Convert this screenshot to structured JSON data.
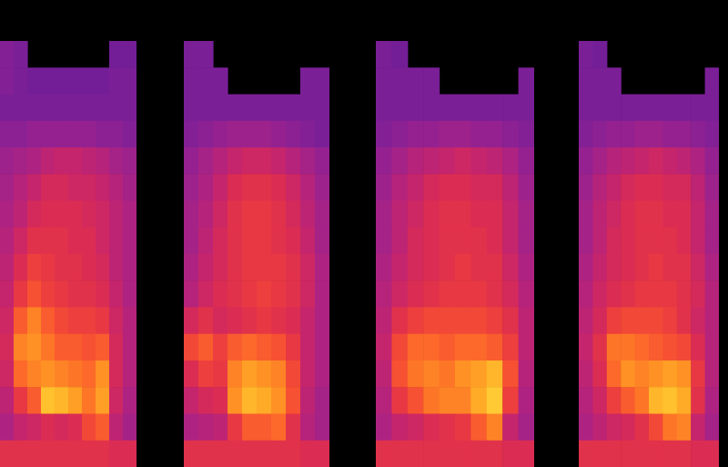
{
  "chart_data": [
    {
      "type": "heatmap",
      "tick_labels": false,
      "zlim": [
        0,
        100
      ],
      "z": [
        [
          32,
          30,
          null,
          null,
          null,
          null,
          null,
          null,
          28,
          28
        ],
        [
          32,
          30,
          28,
          28,
          28,
          28,
          28,
          28,
          30,
          30
        ],
        [
          30,
          30,
          30,
          30,
          30,
          30,
          30,
          30,
          30,
          30
        ],
        [
          34,
          34,
          36,
          36,
          36,
          36,
          36,
          34,
          34,
          32
        ],
        [
          38,
          40,
          42,
          46,
          48,
          48,
          46,
          44,
          40,
          38
        ],
        [
          40,
          44,
          48,
          52,
          52,
          50,
          50,
          48,
          44,
          40
        ],
        [
          42,
          46,
          52,
          54,
          54,
          54,
          52,
          50,
          46,
          42
        ],
        [
          44,
          50,
          56,
          56,
          56,
          54,
          54,
          50,
          46,
          42
        ],
        [
          46,
          54,
          60,
          58,
          56,
          56,
          54,
          52,
          46,
          42
        ],
        [
          48,
          58,
          64,
          60,
          58,
          56,
          56,
          54,
          48,
          42
        ],
        [
          50,
          66,
          72,
          66,
          62,
          60,
          60,
          58,
          50,
          44
        ],
        [
          52,
          72,
          74,
          70,
          66,
          66,
          64,
          66,
          52,
          44
        ],
        [
          50,
          68,
          72,
          74,
          72,
          70,
          68,
          74,
          52,
          44
        ],
        [
          46,
          58,
          66,
          82,
          80,
          76,
          70,
          76,
          50,
          42
        ],
        [
          42,
          48,
          50,
          54,
          52,
          54,
          62,
          66,
          46,
          40
        ],
        [
          56,
          56,
          56,
          56,
          56,
          56,
          56,
          56,
          54,
          54
        ]
      ]
    },
    {
      "type": "heatmap",
      "tick_labels": false,
      "zlim": [
        0,
        100
      ],
      "z": [
        [
          30,
          30,
          null,
          null,
          null,
          null,
          null,
          null,
          null,
          null
        ],
        [
          30,
          30,
          30,
          null,
          null,
          null,
          null,
          null,
          30,
          30
        ],
        [
          30,
          30,
          30,
          30,
          30,
          30,
          30,
          30,
          30,
          30
        ],
        [
          32,
          34,
          36,
          38,
          38,
          38,
          36,
          34,
          32,
          30
        ],
        [
          36,
          40,
          44,
          48,
          50,
          50,
          48,
          44,
          40,
          36
        ],
        [
          38,
          42,
          48,
          54,
          56,
          56,
          54,
          50,
          44,
          38
        ],
        [
          40,
          44,
          50,
          56,
          58,
          58,
          56,
          52,
          46,
          40
        ],
        [
          40,
          46,
          52,
          56,
          58,
          58,
          56,
          54,
          48,
          40
        ],
        [
          42,
          48,
          52,
          56,
          58,
          58,
          58,
          56,
          50,
          42
        ],
        [
          44,
          50,
          54,
          56,
          58,
          60,
          58,
          56,
          50,
          42
        ],
        [
          52,
          56,
          52,
          54,
          56,
          58,
          56,
          54,
          48,
          42
        ],
        [
          62,
          66,
          60,
          66,
          68,
          66,
          64,
          58,
          48,
          42
        ],
        [
          54,
          60,
          58,
          72,
          76,
          74,
          72,
          62,
          48,
          42
        ],
        [
          48,
          52,
          54,
          74,
          80,
          78,
          74,
          64,
          46,
          40
        ],
        [
          42,
          44,
          46,
          58,
          66,
          66,
          68,
          56,
          44,
          40
        ],
        [
          56,
          56,
          56,
          56,
          56,
          56,
          56,
          56,
          54,
          54
        ]
      ]
    },
    {
      "type": "heatmap",
      "tick_labels": false,
      "zlim": [
        0,
        100
      ],
      "z": [
        [
          30,
          28,
          null,
          null,
          null,
          null,
          null,
          null,
          null,
          null
        ],
        [
          30,
          30,
          30,
          30,
          null,
          null,
          null,
          null,
          null,
          30
        ],
        [
          30,
          30,
          30,
          30,
          30,
          30,
          30,
          30,
          30,
          30
        ],
        [
          32,
          34,
          36,
          36,
          38,
          38,
          36,
          36,
          34,
          32
        ],
        [
          36,
          40,
          44,
          46,
          48,
          50,
          48,
          46,
          42,
          36
        ],
        [
          38,
          44,
          48,
          52,
          54,
          54,
          52,
          52,
          46,
          38
        ],
        [
          40,
          46,
          50,
          54,
          56,
          56,
          54,
          54,
          48,
          40
        ],
        [
          40,
          46,
          52,
          54,
          56,
          56,
          56,
          54,
          48,
          40
        ],
        [
          42,
          48,
          52,
          54,
          56,
          58,
          56,
          56,
          50,
          42
        ],
        [
          44,
          50,
          54,
          56,
          58,
          58,
          58,
          56,
          52,
          44
        ],
        [
          46,
          56,
          60,
          62,
          62,
          62,
          62,
          60,
          56,
          46
        ],
        [
          48,
          62,
          68,
          68,
          66,
          68,
          68,
          66,
          60,
          46
        ],
        [
          46,
          64,
          70,
          72,
          70,
          74,
          76,
          80,
          64,
          44
        ],
        [
          44,
          58,
          64,
          70,
          72,
          72,
          78,
          84,
          60,
          42
        ],
        [
          42,
          48,
          50,
          54,
          56,
          58,
          66,
          72,
          48,
          40
        ],
        [
          56,
          56,
          56,
          56,
          56,
          56,
          56,
          56,
          54,
          54
        ]
      ]
    },
    {
      "type": "heatmap",
      "tick_labels": false,
      "zlim": [
        0,
        100
      ],
      "z": [
        [
          30,
          28,
          null,
          null,
          null,
          null,
          null,
          null,
          null,
          null
        ],
        [
          30,
          30,
          30,
          null,
          null,
          null,
          null,
          null,
          null,
          30
        ],
        [
          30,
          30,
          30,
          30,
          30,
          30,
          30,
          30,
          30,
          30
        ],
        [
          32,
          34,
          36,
          36,
          38,
          38,
          36,
          36,
          34,
          32
        ],
        [
          36,
          40,
          44,
          46,
          48,
          50,
          48,
          46,
          42,
          36
        ],
        [
          38,
          44,
          48,
          52,
          54,
          54,
          52,
          52,
          46,
          38
        ],
        [
          40,
          46,
          50,
          54,
          56,
          56,
          54,
          54,
          48,
          40
        ],
        [
          40,
          46,
          52,
          54,
          56,
          56,
          56,
          54,
          48,
          40
        ],
        [
          42,
          48,
          52,
          54,
          56,
          58,
          56,
          56,
          50,
          42
        ],
        [
          44,
          50,
          54,
          56,
          58,
          58,
          58,
          56,
          52,
          44
        ],
        [
          46,
          52,
          60,
          62,
          62,
          62,
          60,
          56,
          50,
          44
        ],
        [
          48,
          56,
          70,
          70,
          68,
          66,
          64,
          62,
          54,
          44
        ],
        [
          46,
          54,
          68,
          74,
          72,
          74,
          76,
          74,
          58,
          44
        ],
        [
          44,
          50,
          60,
          66,
          70,
          80,
          82,
          78,
          56,
          42
        ],
        [
          42,
          46,
          50,
          52,
          56,
          62,
          70,
          72,
          48,
          40
        ],
        [
          56,
          56,
          56,
          56,
          56,
          56,
          56,
          56,
          54,
          54
        ]
      ]
    }
  ]
}
